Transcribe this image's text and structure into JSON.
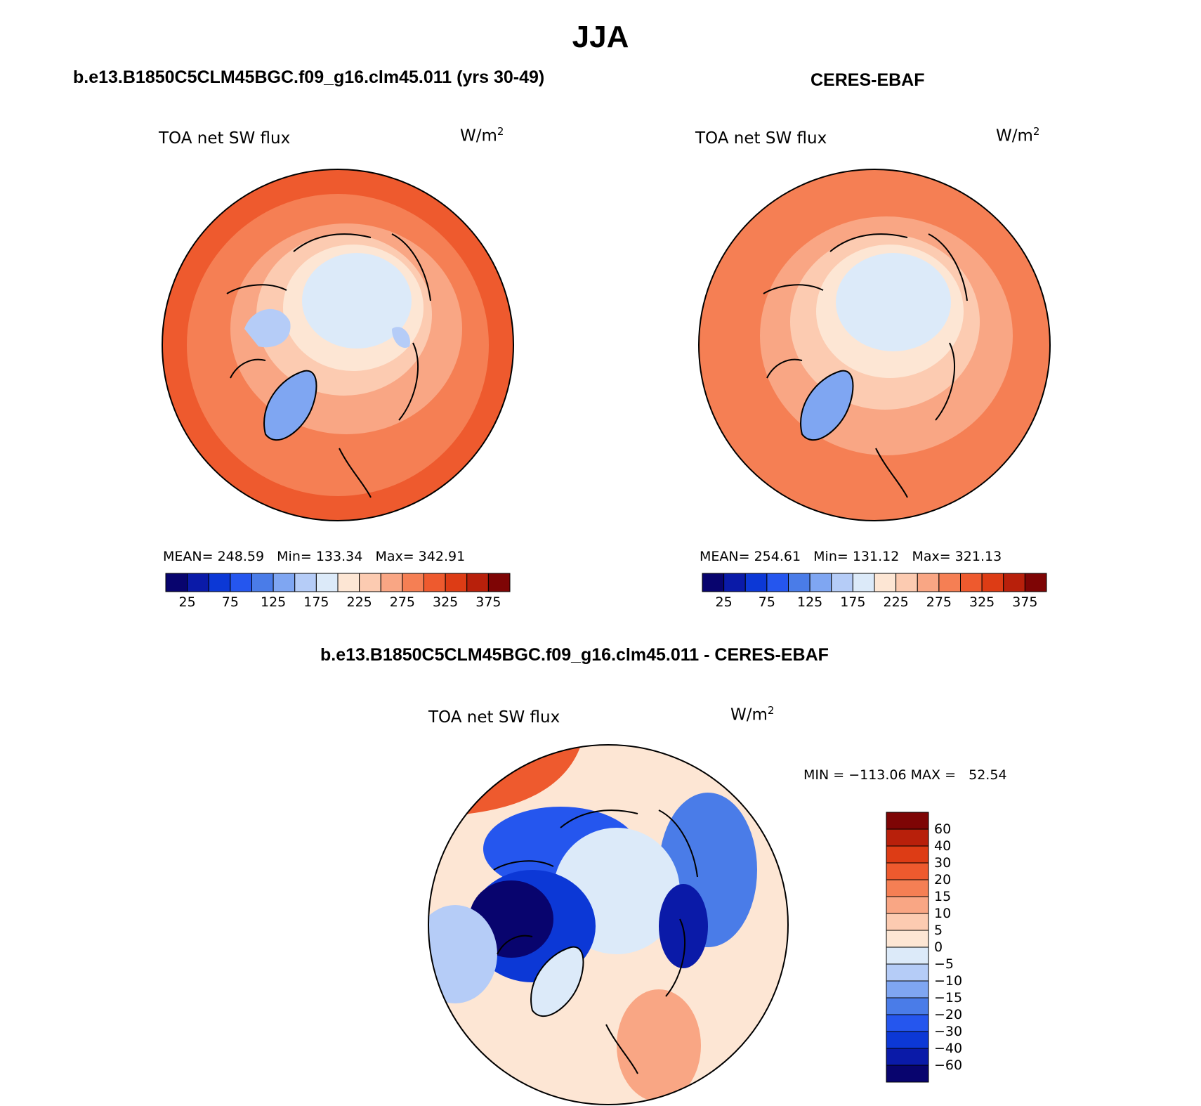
{
  "figure": {
    "season": "JJA",
    "left_panel": {
      "case": "b.e13.B1850C5CLM45BGC.f09_g16.clm45.011 (yrs 30-49)",
      "variable": "TOA net SW flux",
      "units_base": "W/m",
      "units_exp": "2",
      "stats": "MEAN= 248.59   Min= 133.34   Max= 342.91"
    },
    "right_panel": {
      "case": "CERES-EBAF",
      "variable": "TOA net SW flux",
      "units_base": "W/m",
      "units_exp": "2",
      "stats": "MEAN= 254.61   Min= 131.12   Max= 321.13"
    },
    "diff_panel": {
      "case": "b.e13.B1850C5CLM45BGC.f09_g16.clm45.011 - CERES-EBAF",
      "variable": "TOA net SW flux",
      "units_base": "W/m",
      "units_exp": "2",
      "stats": "MIN = −113.06 MAX =   52.54"
    }
  },
  "colorbar_abs": {
    "colors": [
      "#08046e",
      "#0a1aa8",
      "#0c38d6",
      "#2556ee",
      "#4a7ce8",
      "#7fa6f2",
      "#b5ccf7",
      "#dceaf9",
      "#fde6d4",
      "#fccbb1",
      "#f9a684",
      "#f57f54",
      "#ee5a2e",
      "#dd3c15",
      "#b8200b",
      "#7e0505"
    ],
    "labels": [
      "25",
      "75",
      "125",
      "175",
      "225",
      "275",
      "325",
      "375"
    ]
  },
  "colorbar_diff": {
    "colors": [
      "#7e0505",
      "#b8200b",
      "#dd3c15",
      "#ee5a2e",
      "#f57f54",
      "#f9a684",
      "#fccbb1",
      "#fde6d4",
      "#dceaf9",
      "#b5ccf7",
      "#7fa6f2",
      "#4a7ce8",
      "#2556ee",
      "#0c38d6",
      "#0a1aa8",
      "#08046e"
    ],
    "labels": [
      "60",
      "40",
      "30",
      "20",
      "15",
      "10",
      "5",
      "0",
      "−5",
      "−10",
      "−15",
      "−20",
      "−30",
      "−40",
      "−60"
    ]
  },
  "map_colors": {
    "ocean_warm": "#f57f54",
    "ocean_warm2": "#f9a684",
    "ocean_hot": "#ee5a2e",
    "arctic_light": "#dceaf9",
    "ice_blue": "#7fa6f2",
    "pale": "#fccbb1",
    "diff_dark": "#08046e",
    "diff_blue": "#0c38d6",
    "diff_mid": "#4a7ce8"
  }
}
